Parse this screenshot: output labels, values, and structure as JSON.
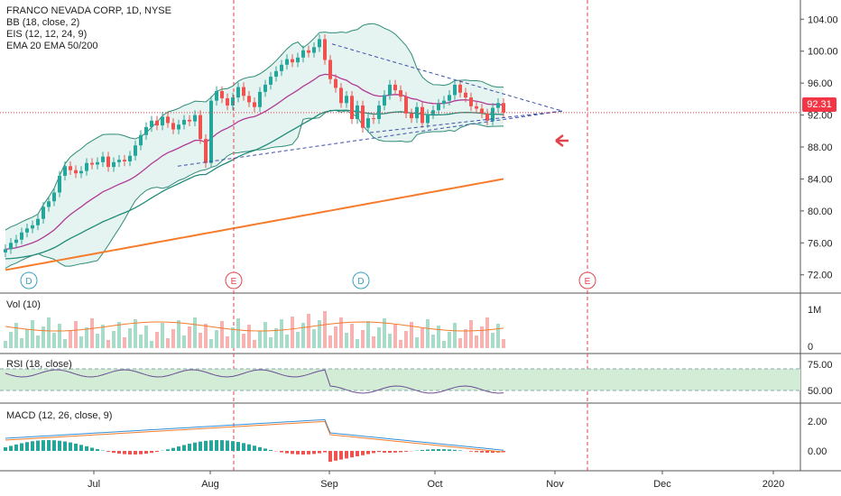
{
  "legend": {
    "title": "FRANCO NEVADA CORP, 1D, NYSE",
    "line1": "BB (18, close, 2)",
    "line2": "EIS (12, 12, 24, 9)",
    "line3": "EMA 20 EMA 50/200"
  },
  "panes": {
    "volume_label": "Vol (10)",
    "rsi_label": "RSI (18, close)",
    "macd_label": "MACD (12, 26, close, 9)"
  },
  "last_price": "92.31",
  "chart_data": {
    "type": "candlestick",
    "price_axis": {
      "ticks": [
        "104.00",
        "100.00",
        "96.00",
        "92.00",
        "88.00",
        "84.00",
        "80.00",
        "76.00",
        "72.00"
      ],
      "range": [
        70.5,
        105.5
      ]
    },
    "volume_axis": {
      "ticks": [
        "1M",
        "0"
      ]
    },
    "rsi_axis": {
      "ticks": [
        "75.00",
        "50.00"
      ],
      "band": [
        50,
        70
      ]
    },
    "macd_axis": {
      "ticks": [
        "2.00",
        "0.00"
      ]
    },
    "time_axis": {
      "ticks": [
        "Jul",
        "Aug",
        "Sep",
        "Oct",
        "Nov",
        "Dec",
        "2020"
      ]
    },
    "close_series_approx": [
      75.2,
      76.0,
      76.4,
      77.3,
      77.8,
      78.2,
      79.0,
      80.5,
      81.2,
      82.3,
      84.4,
      85.6,
      85.1,
      84.7,
      85.0,
      86.0,
      85.8,
      86.1,
      86.8,
      85.5,
      86.1,
      86.4,
      86.2,
      86.9,
      88.2,
      89.5,
      90.5,
      91.3,
      90.7,
      91.8,
      91.0,
      90.2,
      90.8,
      91.4,
      91.2,
      92.0,
      89.0,
      86.0,
      93.8,
      95.0,
      94.1,
      93.2,
      94.2,
      95.5,
      94.4,
      93.6,
      93.0,
      94.9,
      95.8,
      96.8,
      97.5,
      98.3,
      99.0,
      98.6,
      99.2,
      100.1,
      99.8,
      100.5,
      101.5,
      98.9,
      96.5,
      95.4,
      93.5,
      94.4,
      91.5,
      93.2,
      90.4,
      91.6,
      91.5,
      93.2,
      94.5,
      95.8,
      95.1,
      94.3,
      92.2,
      91.6,
      93.0,
      91.0,
      92.1,
      92.6,
      93.4,
      93.8,
      94.5,
      95.8,
      94.8,
      94.2,
      93.1,
      92.8,
      92.2,
      91.3,
      92.9,
      93.5,
      92.31
    ],
    "ema_50_series_approx_end": 84.0,
    "annotations": [
      {
        "type": "dividend",
        "label": "D"
      },
      {
        "type": "earnings",
        "label": "E"
      },
      {
        "type": "dividend",
        "label": "D"
      },
      {
        "type": "earnings",
        "label": "E"
      }
    ],
    "pattern": "symmetrical triangle (dashed trendlines)"
  },
  "colors": {
    "up": "#26a69a",
    "down": "#ef5350",
    "bb": "#2e8b77",
    "bb_fill": "#e6f4f1",
    "ema20": "#b03b96",
    "ema50": "#1f8a78",
    "ema200": "#f57c2b",
    "trend": "#3b50a8",
    "event": "#e0434d",
    "price_line": "#f23645"
  }
}
